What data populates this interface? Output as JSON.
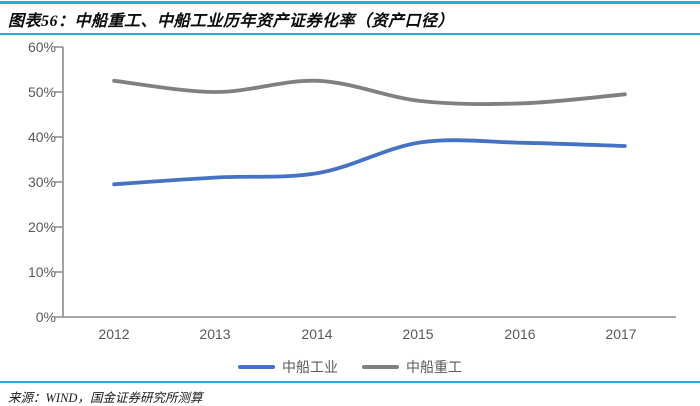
{
  "header": {
    "title": "图表56：中船重工、中船工业历年资产证券化率（资产口径）"
  },
  "chart_data": {
    "type": "line",
    "title": "中船重工、中船工业历年资产证券化率（资产口径）",
    "categories": [
      "2012",
      "2013",
      "2014",
      "2015",
      "2016",
      "2017"
    ],
    "series": [
      {
        "name": "中船工业",
        "color": "#4472c4",
        "values": [
          29.5,
          31,
          32,
          38.8,
          38.7,
          38
        ]
      },
      {
        "name": "中船重工",
        "color": "#808080",
        "values": [
          52.5,
          50,
          52.5,
          48,
          47.5,
          49.5
        ]
      }
    ],
    "ylim": [
      0,
      60
    ],
    "ytick_step": 10,
    "ytick_labels": [
      "0%",
      "10%",
      "20%",
      "30%",
      "40%",
      "50%",
      "60%"
    ],
    "xlabel": "",
    "ylabel": "",
    "grid": false,
    "smooth_lines": true,
    "legend_position": "bottom"
  },
  "footer": {
    "source": "来源：WIND，国金证券研究所测算"
  },
  "colors": {
    "accent_rule_blue": "#29a9df",
    "series_blue": "#4472c4",
    "series_gray": "#808080",
    "axis_gray": "#8c8c8c",
    "tick_text": "#595959"
  }
}
